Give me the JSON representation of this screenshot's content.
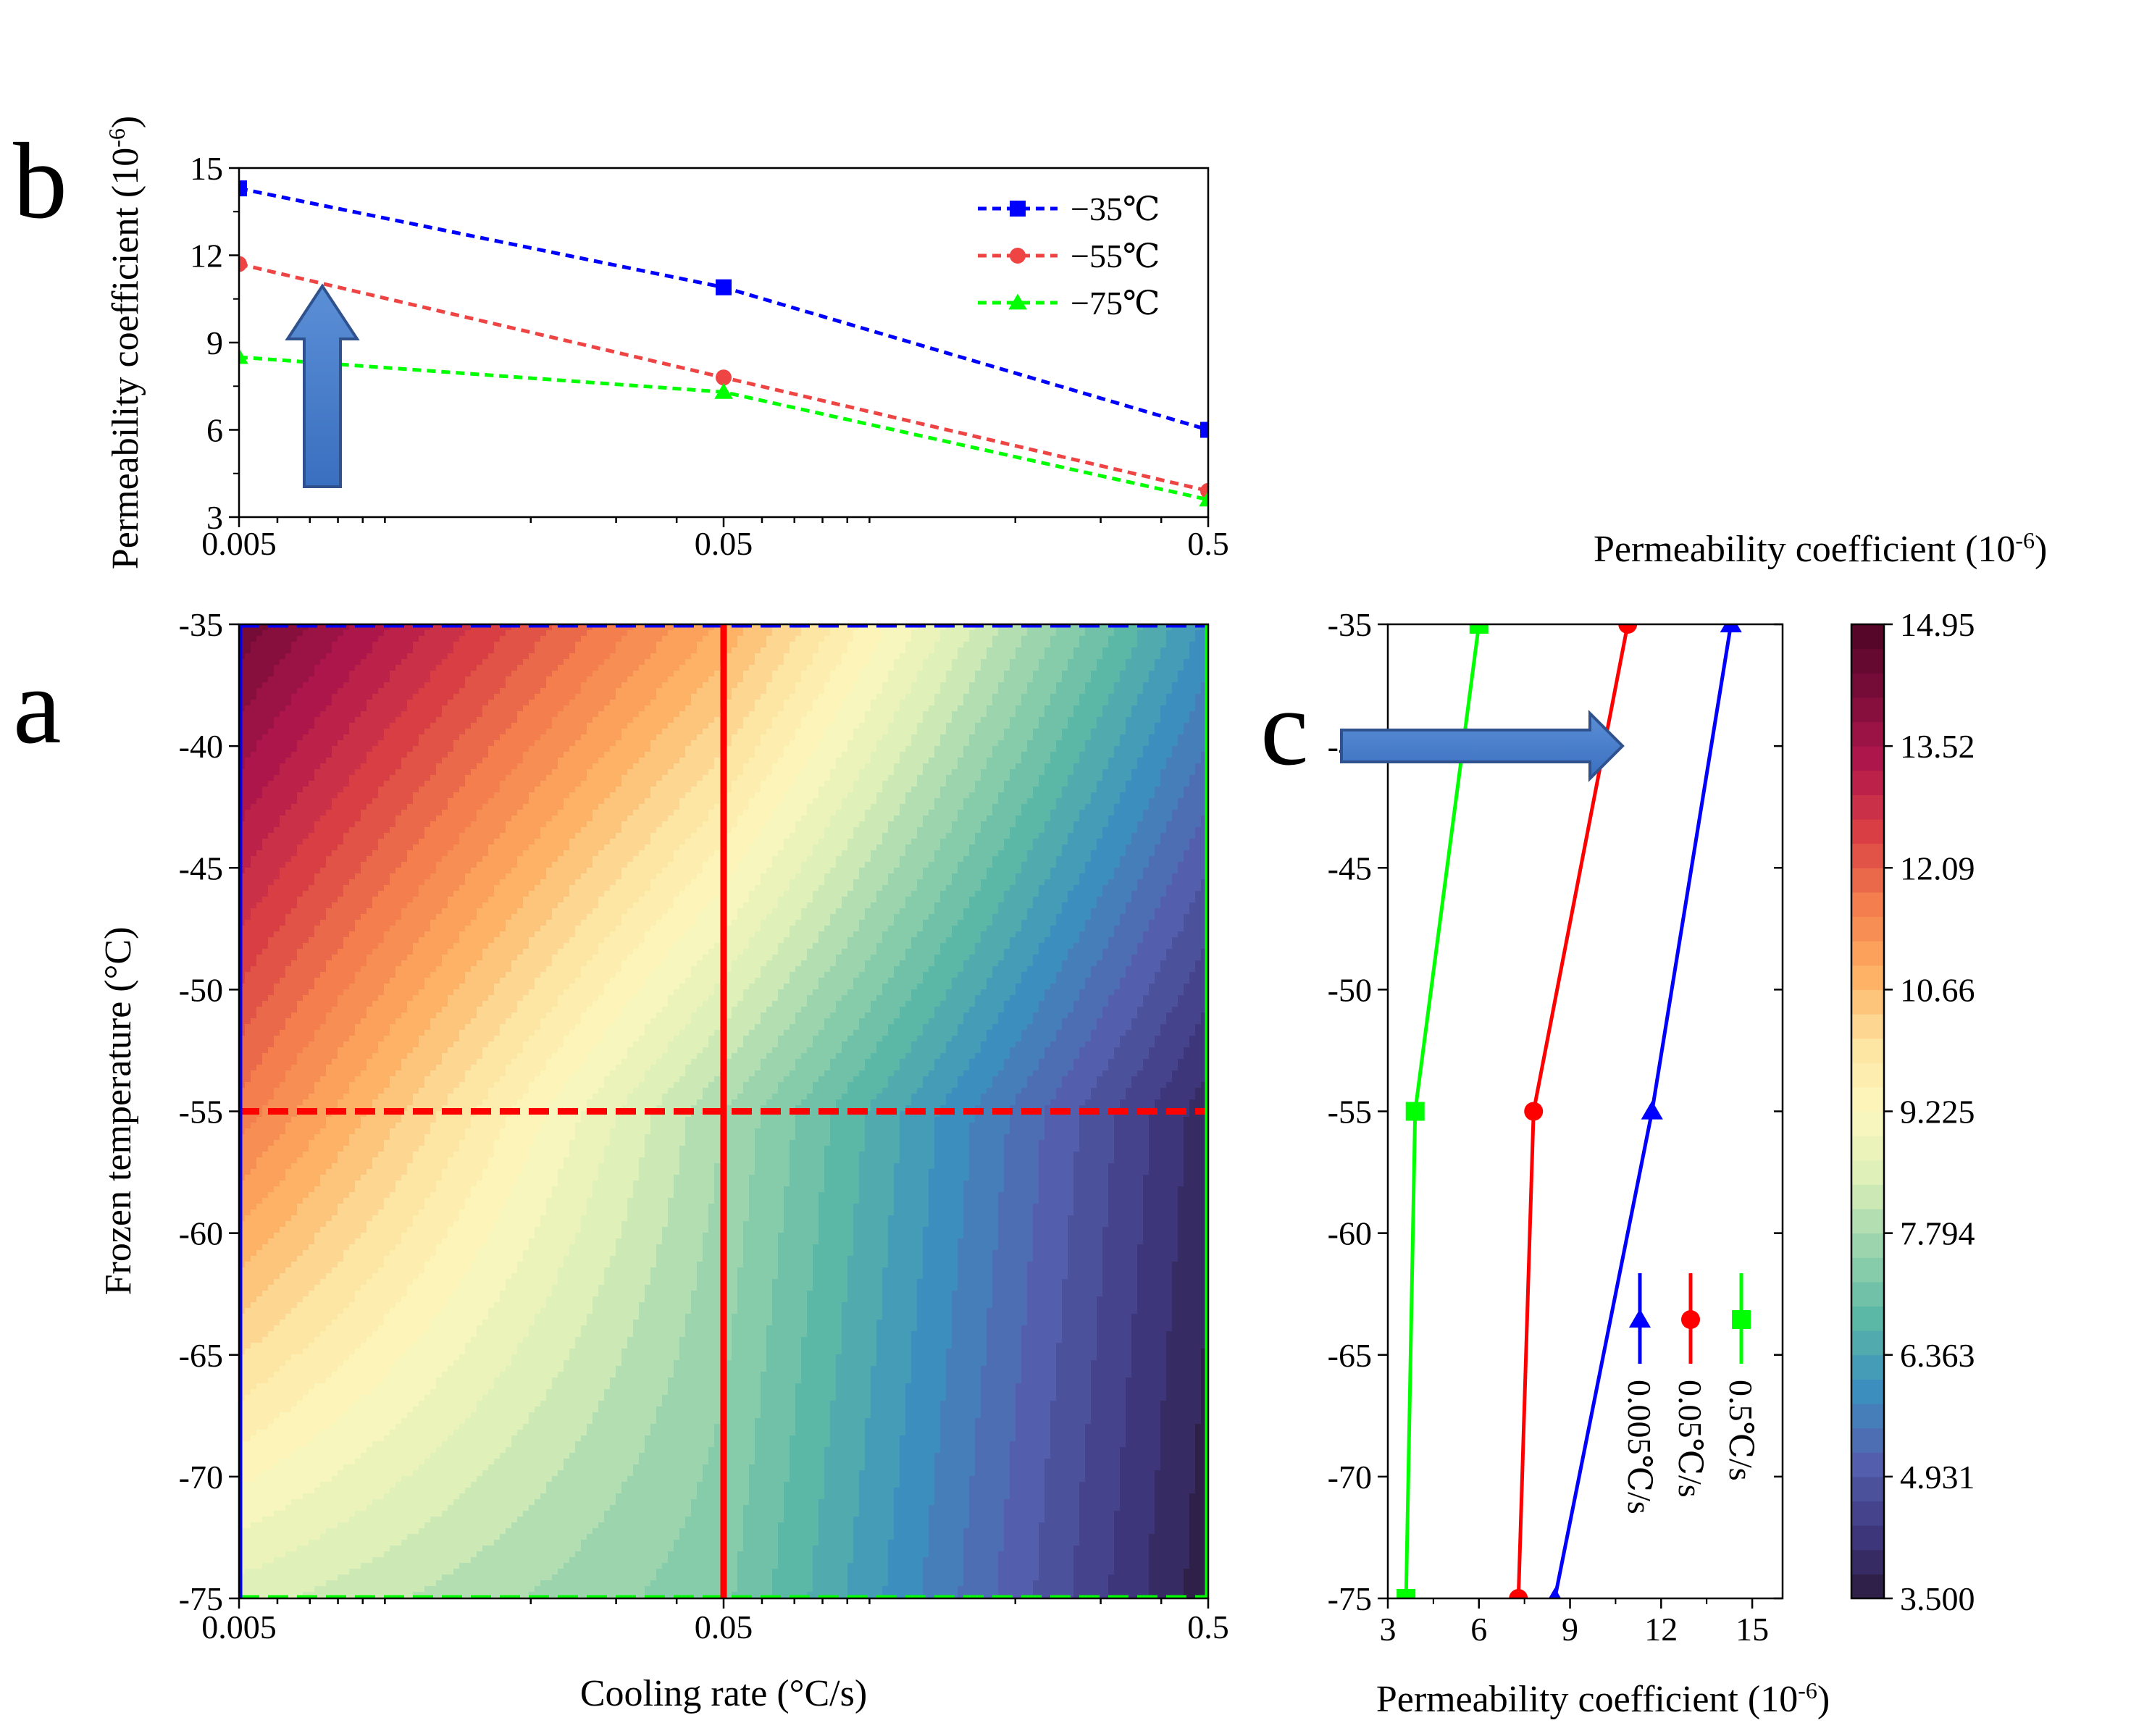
{
  "panel_labels": {
    "a": "a",
    "b": "b",
    "c": "c"
  },
  "chart_data": [
    {
      "id": "panel-b",
      "type": "line",
      "xscale": "log",
      "xlabel": "",
      "ylabel": "Permeability coefficient (10",
      "ylabel_sup": "-6",
      "ylabel_close": ")",
      "x": [
        0.005,
        0.05,
        0.5
      ],
      "xtick_labels": [
        "0.005",
        "0.05",
        "0.5"
      ],
      "ylim": [
        3,
        15
      ],
      "yticks": [
        3,
        6,
        9,
        12,
        15
      ],
      "legend_position": "top-right",
      "series": [
        {
          "name": "−35℃",
          "values": [
            14.3,
            10.9,
            6.0
          ],
          "color": "#0000ff",
          "marker": "square"
        },
        {
          "name": "−55℃",
          "values": [
            11.7,
            7.8,
            3.9
          ],
          "color": "#ef4444",
          "marker": "circle"
        },
        {
          "name": "−75℃",
          "values": [
            8.5,
            7.3,
            3.6
          ],
          "color": "#00ff00",
          "marker": "triangle"
        }
      ]
    },
    {
      "id": "panel-a",
      "type": "heatmap",
      "xscale": "log",
      "xlabel": "Cooling rate (°C/s)",
      "ylabel": "Frozen temperature (°C)",
      "x": [
        0.005,
        0.05,
        0.5
      ],
      "xtick_labels": [
        "0.005",
        "0.05",
        "0.5"
      ],
      "y": [
        -35,
        -55,
        -75
      ],
      "ylim": [
        -75,
        -35
      ],
      "yticks": [
        -35,
        -40,
        -45,
        -50,
        -55,
        -60,
        -65,
        -70,
        -75
      ],
      "z": [
        [
          14.3,
          10.9,
          6.0
        ],
        [
          11.7,
          7.8,
          3.9
        ],
        [
          8.5,
          7.3,
          3.6
        ]
      ],
      "reference_lines": [
        {
          "orientation": "horizontal",
          "value": -35,
          "style": "dashed",
          "color": "#0000ff"
        },
        {
          "orientation": "horizontal",
          "value": -55,
          "style": "dashed",
          "color": "#ff0000"
        },
        {
          "orientation": "horizontal",
          "value": -75,
          "style": "dashed",
          "color": "#00ff00"
        },
        {
          "orientation": "vertical",
          "value": 0.005,
          "style": "solid",
          "color": "#0000ff"
        },
        {
          "orientation": "vertical",
          "value": 0.05,
          "style": "solid",
          "color": "#ff0000"
        },
        {
          "orientation": "vertical",
          "value": 0.5,
          "style": "solid",
          "color": "#00ff00"
        }
      ]
    },
    {
      "id": "panel-c",
      "type": "line",
      "xlabel": "Permeability coefficient (10",
      "xlabel_sup": "-6",
      "xlabel_close": ")",
      "ylabel": "",
      "xlim": [
        3,
        16
      ],
      "xticks": [
        3,
        6,
        9,
        12,
        15
      ],
      "ylim": [
        -75,
        -35
      ],
      "yticks": [
        -35,
        -40,
        -45,
        -50,
        -55,
        -60,
        -65,
        -70,
        -75
      ],
      "legend_position": "bottom-right",
      "series": [
        {
          "name": "0.005℃/s",
          "x": [
            14.3,
            11.7,
            8.5
          ],
          "y": [
            -35,
            -55,
            -75
          ],
          "color": "#0000ff",
          "marker": "triangle"
        },
        {
          "name": "0.05℃/s",
          "x": [
            10.9,
            7.8,
            7.3
          ],
          "y": [
            -35,
            -55,
            -75
          ],
          "color": "#ff0000",
          "marker": "circle"
        },
        {
          "name": "0.5℃/s",
          "x": [
            6.0,
            3.9,
            3.6
          ],
          "y": [
            -35,
            -55,
            -75
          ],
          "color": "#00ff00",
          "marker": "square"
        }
      ]
    },
    {
      "id": "colorbar",
      "type": "heatmap",
      "title": "Permeability coefficient (10",
      "title_sup": "-6",
      "title_close": ")",
      "vmin": 3.5,
      "vmax": 14.95,
      "tick_labels": [
        "3.500",
        "4.931",
        "6.363",
        "7.794",
        "9.225",
        "10.66",
        "12.09",
        "13.52",
        "14.95"
      ],
      "colormap": [
        "#2b1a3e",
        "#3f3a82",
        "#5562b0",
        "#3b8fbe",
        "#5ab7a6",
        "#96d2ac",
        "#dbefb8",
        "#fdf8bf",
        "#fde3a0",
        "#fdae61",
        "#f47d4e",
        "#d93f44",
        "#b1174b",
        "#7a0d3a",
        "#4d0426"
      ]
    }
  ]
}
